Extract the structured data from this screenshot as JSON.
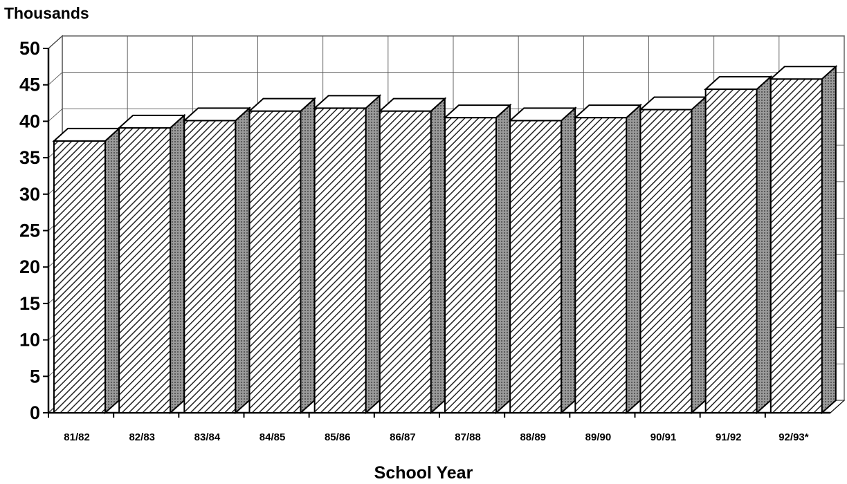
{
  "chart_data": {
    "type": "bar",
    "title": "",
    "ylabel": "Thousands",
    "xlabel": "School Year",
    "categories": [
      "81/82",
      "82/83",
      "83/84",
      "84/85",
      "85/86",
      "86/87",
      "87/88",
      "88/89",
      "89/90",
      "90/91",
      "91/92",
      "92/93*"
    ],
    "values": [
      37.3,
      39.1,
      40.1,
      41.4,
      41.8,
      41.4,
      40.5,
      40.1,
      40.5,
      41.6,
      44.4,
      45.8
    ],
    "ylim": [
      0,
      50
    ],
    "yticks": [
      0,
      5,
      10,
      15,
      20,
      25,
      30,
      35,
      40,
      45,
      50
    ],
    "grid": true,
    "style": "3d-hatched"
  }
}
